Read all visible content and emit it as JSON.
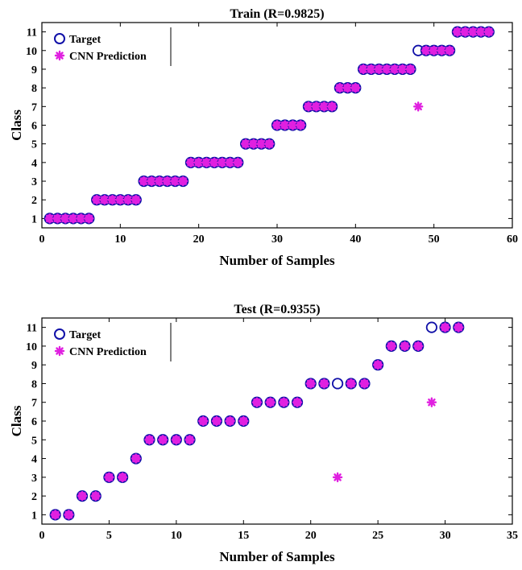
{
  "chart_data": [
    {
      "type": "scatter",
      "title": "Train (R=0.9825)",
      "xlabel": "Number of Samples",
      "ylabel": "Class",
      "xlim": [
        0,
        60
      ],
      "ylim": [
        0.5,
        11.5
      ],
      "xticks": [
        "0",
        "10",
        "20",
        "30",
        "40",
        "50",
        "60"
      ],
      "yticks": [
        "1",
        "2",
        "3",
        "4",
        "5",
        "6",
        "7",
        "8",
        "9",
        "10",
        "11"
      ],
      "grid": false,
      "legend_position": "top-left",
      "series": [
        {
          "name": "Target",
          "marker": "circle",
          "color": "#1010a8",
          "x": [
            1,
            2,
            3,
            4,
            5,
            6,
            7,
            8,
            9,
            10,
            11,
            12,
            13,
            14,
            15,
            16,
            17,
            18,
            19,
            20,
            21,
            22,
            23,
            24,
            25,
            26,
            27,
            28,
            29,
            30,
            31,
            32,
            33,
            34,
            35,
            36,
            37,
            38,
            39,
            40,
            41,
            42,
            43,
            44,
            45,
            46,
            47,
            48,
            49,
            50,
            51,
            52,
            53,
            54,
            55,
            56,
            57
          ],
          "y": [
            1,
            1,
            1,
            1,
            1,
            1,
            2,
            2,
            2,
            2,
            2,
            2,
            3,
            3,
            3,
            3,
            3,
            3,
            4,
            4,
            4,
            4,
            4,
            4,
            4,
            5,
            5,
            5,
            5,
            6,
            6,
            6,
            6,
            7,
            7,
            7,
            7,
            8,
            8,
            8,
            9,
            9,
            9,
            9,
            9,
            9,
            9,
            10,
            10,
            10,
            10,
            10,
            11,
            11,
            11,
            11,
            11
          ]
        },
        {
          "name": "CNN Prediction",
          "marker": "asterisk",
          "color": "#e020e0",
          "x": [
            1,
            2,
            3,
            4,
            5,
            6,
            7,
            8,
            9,
            10,
            11,
            12,
            13,
            14,
            15,
            16,
            17,
            18,
            19,
            20,
            21,
            22,
            23,
            24,
            25,
            26,
            27,
            28,
            29,
            30,
            31,
            32,
            33,
            34,
            35,
            36,
            37,
            38,
            39,
            40,
            41,
            42,
            43,
            44,
            45,
            46,
            47,
            48,
            49,
            50,
            51,
            52,
            53,
            54,
            55,
            56,
            57
          ],
          "y": [
            1,
            1,
            1,
            1,
            1,
            1,
            2,
            2,
            2,
            2,
            2,
            2,
            3,
            3,
            3,
            3,
            3,
            3,
            4,
            4,
            4,
            4,
            4,
            4,
            4,
            5,
            5,
            5,
            5,
            6,
            6,
            6,
            6,
            7,
            7,
            7,
            7,
            8,
            8,
            8,
            9,
            9,
            9,
            9,
            9,
            9,
            9,
            7,
            10,
            10,
            10,
            10,
            11,
            11,
            11,
            11,
            11
          ]
        }
      ]
    },
    {
      "type": "scatter",
      "title": "Test (R=0.9355)",
      "xlabel": "Number of Samples",
      "ylabel": "Class",
      "xlim": [
        0,
        35
      ],
      "ylim": [
        0.5,
        11.5
      ],
      "xticks": [
        "0",
        "5",
        "10",
        "15",
        "20",
        "25",
        "30",
        "35"
      ],
      "yticks": [
        "1",
        "2",
        "3",
        "4",
        "5",
        "6",
        "7",
        "8",
        "9",
        "10",
        "11"
      ],
      "grid": false,
      "legend_position": "top-left",
      "series": [
        {
          "name": "Target",
          "marker": "circle",
          "color": "#1010a8",
          "x": [
            1,
            2,
            3,
            4,
            5,
            6,
            7,
            8,
            9,
            10,
            11,
            12,
            13,
            14,
            15,
            16,
            17,
            18,
            19,
            20,
            21,
            22,
            23,
            24,
            25,
            26,
            27,
            28,
            29,
            30,
            31
          ],
          "y": [
            1,
            1,
            2,
            2,
            3,
            3,
            4,
            5,
            5,
            5,
            5,
            6,
            6,
            6,
            6,
            7,
            7,
            7,
            7,
            8,
            8,
            8,
            8,
            8,
            9,
            10,
            10,
            10,
            11,
            11,
            11
          ]
        },
        {
          "name": "CNN Prediction",
          "marker": "asterisk",
          "color": "#e020e0",
          "x": [
            1,
            2,
            3,
            4,
            5,
            6,
            7,
            8,
            9,
            10,
            11,
            12,
            13,
            14,
            15,
            16,
            17,
            18,
            19,
            20,
            21,
            22,
            23,
            24,
            25,
            26,
            27,
            28,
            29,
            30,
            31
          ],
          "y": [
            1,
            1,
            2,
            2,
            3,
            3,
            4,
            5,
            5,
            5,
            5,
            6,
            6,
            6,
            6,
            7,
            7,
            7,
            7,
            8,
            8,
            3,
            8,
            8,
            9,
            10,
            10,
            10,
            7,
            11,
            11
          ]
        }
      ]
    }
  ]
}
